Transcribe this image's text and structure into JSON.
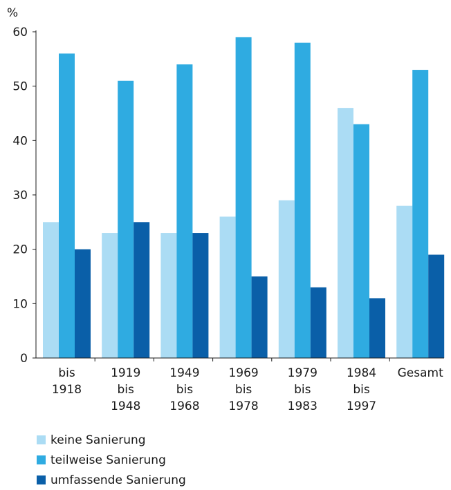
{
  "chart_data": {
    "type": "bar",
    "y_unit_label": "%",
    "ylim": [
      0,
      60
    ],
    "yticks": [
      0,
      10,
      20,
      30,
      40,
      50,
      60
    ],
    "grid": false,
    "categories": [
      [
        "bis",
        "1918"
      ],
      [
        "1919",
        "bis",
        "1948"
      ],
      [
        "1949",
        "bis",
        "1968"
      ],
      [
        "1969",
        "bis",
        "1978"
      ],
      [
        "1979",
        "bis",
        "1983"
      ],
      [
        "1984",
        "bis",
        "1997"
      ],
      [
        "Gesamt"
      ]
    ],
    "series": [
      {
        "name": "keine Sanierung",
        "color": "#abdcf4",
        "values": [
          25,
          23,
          23,
          26,
          29,
          46,
          28
        ]
      },
      {
        "name": "teilweise Sanierung",
        "color": "#2fabe1",
        "values": [
          56,
          51,
          54,
          59,
          58,
          43,
          53
        ]
      },
      {
        "name": "umfassende Sanierung",
        "color": "#0a5fa8",
        "values": [
          20,
          25,
          23,
          15,
          13,
          11,
          19
        ]
      }
    ],
    "legend_position": "bottom-left"
  }
}
